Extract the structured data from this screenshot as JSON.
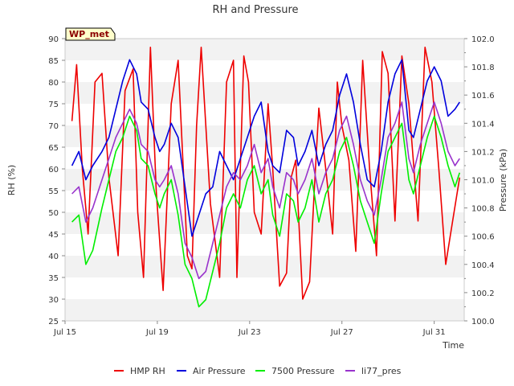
{
  "chart_data": {
    "type": "line",
    "title": "RH and Pressure",
    "badge": "WP_met",
    "xlabel": "Time",
    "ylabel_left": "RH (%)",
    "ylabel_right": "Pressure (kPa)",
    "x_range": [
      15.0,
      32.3
    ],
    "ylim_left": [
      25,
      90
    ],
    "ylim_right": [
      100.0,
      102.0
    ],
    "x_ticks": [
      {
        "label": "Jul 15",
        "day": 15
      },
      {
        "label": "Jul 19",
        "day": 19
      },
      {
        "label": "Jul 23",
        "day": 23
      },
      {
        "label": "Jul 27",
        "day": 27
      },
      {
        "label": "Jul 31",
        "day": 31
      }
    ],
    "y_left_ticks": [
      25,
      30,
      35,
      40,
      45,
      50,
      55,
      60,
      65,
      70,
      75,
      80,
      85,
      90
    ],
    "y_right_ticks": [
      "100.0",
      "100.2",
      "100.4",
      "100.6",
      "100.8",
      "101.0",
      "101.2",
      "101.4",
      "101.6",
      "101.8",
      "102.0"
    ],
    "grid": "horizontal bands",
    "legend_position": "bottom",
    "series": [
      {
        "name": "HMP RH",
        "axis": "left",
        "color": "#ee0000",
        "day": [
          15.3,
          15.5,
          15.75,
          16.0,
          16.3,
          16.6,
          16.9,
          17.3,
          17.6,
          17.95,
          18.15,
          18.4,
          18.7,
          18.95,
          19.25,
          19.6,
          19.9,
          20.3,
          20.5,
          20.7,
          20.9,
          21.3,
          21.7,
          22.0,
          22.3,
          22.45,
          22.75,
          22.95,
          23.2,
          23.5,
          23.8,
          24.0,
          24.3,
          24.6,
          24.8,
          25.0,
          25.3,
          25.6,
          25.8,
          26.0,
          26.3,
          26.6,
          26.8,
          27.0,
          27.3,
          27.6,
          27.9,
          28.2,
          28.5,
          28.75,
          29.0,
          29.3,
          29.6,
          29.9,
          30.3,
          30.6,
          30.9,
          31.2,
          31.5,
          31.8,
          32.1
        ],
        "values": [
          71,
          84,
          60,
          45,
          80,
          82,
          58,
          40,
          78,
          83,
          50,
          35,
          88,
          55,
          32,
          75,
          85,
          40,
          37,
          70,
          88,
          52,
          35,
          80,
          85,
          35,
          86,
          80,
          50,
          45,
          75,
          60,
          33,
          36,
          58,
          62,
          30,
          34,
          55,
          74,
          60,
          45,
          80,
          70,
          62,
          41,
          85,
          60,
          40,
          87,
          82,
          48,
          86,
          75,
          48,
          88,
          80,
          60,
          38,
          48,
          58
        ]
      },
      {
        "name": "Air Pressure",
        "axis": "right",
        "color": "#0000dd",
        "day": [
          15.3,
          15.6,
          15.9,
          16.2,
          16.6,
          16.9,
          17.2,
          17.5,
          17.8,
          18.1,
          18.3,
          18.6,
          18.9,
          19.1,
          19.3,
          19.6,
          19.9,
          20.2,
          20.5,
          20.8,
          21.1,
          21.4,
          21.7,
          22.0,
          22.3,
          22.6,
          22.9,
          23.2,
          23.5,
          23.8,
          24.0,
          24.3,
          24.6,
          24.9,
          25.1,
          25.4,
          25.7,
          26.0,
          26.3,
          26.6,
          26.9,
          27.2,
          27.5,
          27.8,
          28.1,
          28.4,
          28.7,
          29.0,
          29.3,
          29.6,
          29.9,
          30.1,
          30.4,
          30.7,
          31.0,
          31.3,
          31.6,
          31.9,
          32.1
        ],
        "values": [
          101.1,
          101.2,
          101.0,
          101.1,
          101.2,
          101.3,
          101.5,
          101.7,
          101.85,
          101.75,
          101.55,
          101.5,
          101.3,
          101.2,
          101.25,
          101.4,
          101.3,
          100.95,
          100.6,
          100.75,
          100.9,
          100.95,
          101.2,
          101.1,
          101.0,
          101.15,
          101.3,
          101.45,
          101.55,
          101.2,
          101.1,
          101.05,
          101.35,
          101.3,
          101.1,
          101.2,
          101.35,
          101.1,
          101.25,
          101.35,
          101.6,
          101.75,
          101.55,
          101.25,
          101.0,
          100.95,
          101.2,
          101.55,
          101.75,
          101.85,
          101.35,
          101.3,
          101.5,
          101.7,
          101.8,
          101.7,
          101.45,
          101.5,
          101.55
        ]
      },
      {
        "name": "7500 Pressure",
        "axis": "right",
        "color": "#00ee00",
        "day": [
          15.3,
          15.6,
          15.9,
          16.2,
          16.6,
          16.9,
          17.2,
          17.5,
          17.8,
          18.1,
          18.3,
          18.6,
          18.9,
          19.1,
          19.3,
          19.6,
          19.9,
          20.2,
          20.5,
          20.8,
          21.1,
          21.4,
          21.7,
          22.0,
          22.3,
          22.6,
          22.9,
          23.2,
          23.5,
          23.8,
          24.0,
          24.3,
          24.6,
          24.9,
          25.1,
          25.4,
          25.7,
          26.0,
          26.3,
          26.6,
          26.9,
          27.2,
          27.5,
          27.8,
          28.1,
          28.4,
          28.7,
          29.0,
          29.3,
          29.6,
          29.9,
          30.1,
          30.4,
          30.7,
          31.0,
          31.3,
          31.6,
          31.9,
          32.1
        ],
        "values": [
          100.7,
          100.75,
          100.4,
          100.5,
          100.8,
          101.0,
          101.2,
          101.3,
          101.45,
          101.35,
          101.15,
          101.1,
          100.9,
          100.8,
          100.9,
          101.0,
          100.75,
          100.4,
          100.3,
          100.1,
          100.15,
          100.35,
          100.55,
          100.8,
          100.9,
          100.8,
          101.0,
          101.1,
          100.9,
          101.0,
          100.75,
          100.6,
          100.9,
          100.85,
          100.7,
          100.8,
          101.0,
          100.7,
          100.9,
          101.0,
          101.2,
          101.3,
          101.1,
          100.85,
          100.7,
          100.55,
          100.9,
          101.2,
          101.3,
          101.4,
          101.0,
          100.9,
          101.1,
          101.3,
          101.45,
          101.3,
          101.1,
          100.95,
          101.05
        ]
      },
      {
        "name": "li77_pres",
        "axis": "right",
        "color": "#9933cc",
        "day": [
          15.3,
          15.6,
          15.9,
          16.2,
          16.6,
          16.9,
          17.2,
          17.5,
          17.8,
          18.1,
          18.3,
          18.6,
          18.9,
          19.1,
          19.3,
          19.6,
          19.9,
          20.2,
          20.5,
          20.8,
          21.1,
          21.4,
          21.7,
          22.0,
          22.3,
          22.6,
          22.9,
          23.2,
          23.5,
          23.8,
          24.0,
          24.3,
          24.6,
          24.9,
          25.1,
          25.4,
          25.7,
          26.0,
          26.3,
          26.6,
          26.9,
          27.2,
          27.5,
          27.8,
          28.1,
          28.4,
          28.7,
          29.0,
          29.3,
          29.6,
          29.9,
          30.1,
          30.4,
          30.7,
          31.0,
          31.3,
          31.6,
          31.9,
          32.1
        ],
        "values": [
          100.9,
          100.95,
          100.7,
          100.8,
          101.0,
          101.15,
          101.3,
          101.4,
          101.5,
          101.4,
          101.25,
          101.2,
          101.0,
          100.95,
          101.0,
          101.1,
          100.9,
          100.55,
          100.45,
          100.3,
          100.35,
          100.55,
          100.75,
          100.95,
          101.05,
          101.0,
          101.1,
          101.25,
          101.05,
          101.15,
          100.95,
          100.8,
          101.05,
          101.0,
          100.9,
          101.0,
          101.15,
          100.9,
          101.05,
          101.15,
          101.35,
          101.45,
          101.25,
          101.0,
          100.85,
          100.75,
          101.0,
          101.3,
          101.4,
          101.55,
          101.15,
          101.05,
          101.25,
          101.4,
          101.55,
          101.4,
          101.2,
          101.1,
          101.15
        ]
      }
    ]
  }
}
